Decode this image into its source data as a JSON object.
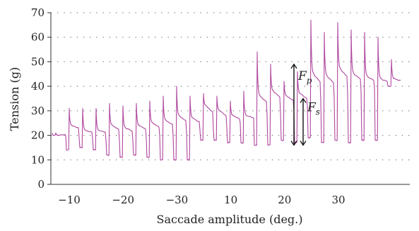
{
  "chart_data": {
    "type": "line",
    "xlabel": "Saccade amplitude (deg.)",
    "ylabel": "Tension (g)",
    "ylim": [
      0,
      70
    ],
    "yticks": [
      0,
      10,
      20,
      30,
      40,
      50,
      60,
      70
    ],
    "xticks": [
      "−10",
      "−20",
      "−30",
      "10",
      "20",
      "30"
    ],
    "grid": "dotted-horizontal",
    "color": "#b0479f",
    "annotations": [
      {
        "base": "F",
        "sub": "p",
        "from": 16,
        "to": 49
      },
      {
        "base": "F",
        "sub": "s",
        "from": 16,
        "to": 35
      }
    ],
    "series": [
      {
        "segments": [
          {
            "hi": 21,
            "peak": 21,
            "plateau": 20,
            "lo": 20
          },
          {
            "hi": 20,
            "peak": 31,
            "plateau": 24,
            "lo": 14
          },
          {
            "hi": 19,
            "peak": 31,
            "plateau": 22,
            "lo": 15
          },
          {
            "hi": 19,
            "peak": 31,
            "plateau": 22,
            "lo": 14
          },
          {
            "hi": 18,
            "peak": 33,
            "plateau": 24,
            "lo": 12
          },
          {
            "hi": 18,
            "peak": 32,
            "plateau": 23,
            "lo": 11
          },
          {
            "hi": 18,
            "peak": 33,
            "plateau": 24,
            "lo": 12
          },
          {
            "hi": 19,
            "peak": 34,
            "plateau": 25,
            "lo": 11
          },
          {
            "hi": 20,
            "peak": 36,
            "plateau": 26,
            "lo": 10
          },
          {
            "hi": 20,
            "peak": 40,
            "plateau": 28,
            "lo": 10
          },
          {
            "hi": 21,
            "peak": 36,
            "plateau": 27,
            "lo": 10
          },
          {
            "hi": 22,
            "peak": 37,
            "plateau": 32,
            "lo": 18
          },
          {
            "hi": 22,
            "peak": 36,
            "plateau": 30,
            "lo": 18
          },
          {
            "hi": 23,
            "peak": 34,
            "plateau": 28,
            "lo": 17
          },
          {
            "hi": 25,
            "peak": 38,
            "plateau": 28,
            "lo": 17
          },
          {
            "hi": 27,
            "peak": 54,
            "plateau": 36,
            "lo": 16
          },
          {
            "hi": 28,
            "peak": 49,
            "plateau": 38,
            "lo": 16
          },
          {
            "hi": 29,
            "peak": 42,
            "plateau": 36,
            "lo": 18
          },
          {
            "hi": 30,
            "peak": 46,
            "plateau": 37,
            "lo": 17
          },
          {
            "hi": 32,
            "peak": 67,
            "plateau": 45,
            "lo": 19
          },
          {
            "hi": 34,
            "peak": 62,
            "plateau": 44,
            "lo": 17
          },
          {
            "hi": 35,
            "peak": 66,
            "plateau": 47,
            "lo": 18
          },
          {
            "hi": 37,
            "peak": 63,
            "plateau": 45,
            "lo": 17
          },
          {
            "hi": 38,
            "peak": 62,
            "plateau": 44,
            "lo": 18
          },
          {
            "hi": 39,
            "peak": 60,
            "plateau": 43,
            "lo": 18
          },
          {
            "hi": 40,
            "peak": 51,
            "plateau": 43,
            "lo": 40
          }
        ]
      }
    ]
  }
}
